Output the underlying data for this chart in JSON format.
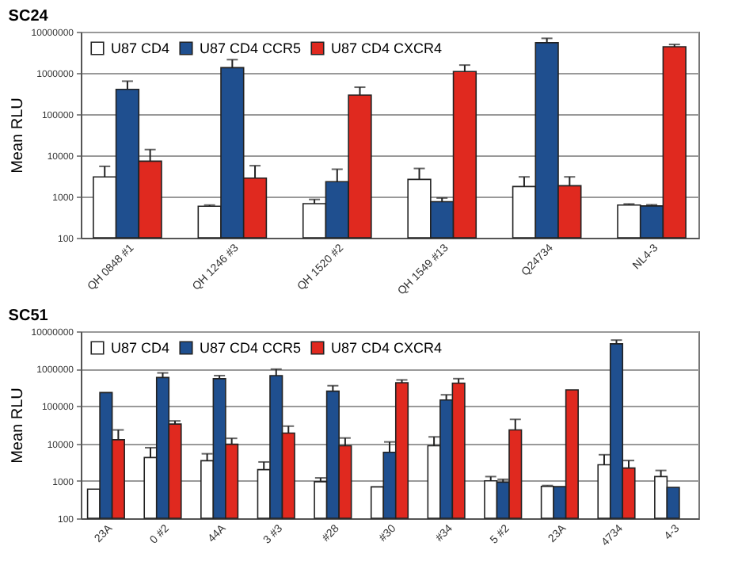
{
  "chart_data": [
    {
      "type": "bar",
      "title": "SC24",
      "ylabel": "Mean RLU",
      "categories": [
        "QH 0848 #1",
        "QH 1246 #3",
        "QH 1520 #2",
        "QH 1549 #13",
        "Q24734",
        "NL4-3"
      ],
      "series": [
        {
          "name": "U87 CD4",
          "color": "#ffffff",
          "values": [
            3000,
            580,
            670,
            2600,
            1750,
            620
          ],
          "errors": [
            [
              3000,
              5400
            ],
            [
              580,
              620
            ],
            [
              670,
              850
            ],
            [
              2600,
              4800
            ],
            [
              1750,
              3000
            ],
            [
              620,
              660
            ]
          ]
        },
        {
          "name": "U87 CD4 CCR5",
          "color": "#1f4f8f",
          "values": [
            400000,
            1340000,
            2300,
            750,
            5400000,
            590
          ],
          "errors": [
            [
              400000,
              630000
            ],
            [
              1340000,
              2100000
            ],
            [
              2300,
              4600
            ],
            [
              750,
              920
            ],
            [
              5400000,
              6900000
            ],
            [
              590,
              630
            ]
          ]
        },
        {
          "name": "U87 CD4 CXCR4",
          "color": "#e0291f",
          "values": [
            7200,
            2800,
            290000,
            1080000,
            1830,
            4300000
          ],
          "errors": [
            [
              7200,
              13800
            ],
            [
              2800,
              5600
            ],
            [
              290000,
              450000
            ],
            [
              1080000,
              1550000
            ],
            [
              1830,
              3000
            ],
            [
              4300000,
              4900000
            ]
          ]
        }
      ],
      "log": true,
      "ylim": [
        100,
        10000000
      ],
      "yticks": [
        100,
        1000,
        10000,
        100000,
        1000000,
        10000000
      ],
      "grid": "y",
      "legend": "top left"
    },
    {
      "type": "bar",
      "title": "SC51",
      "ylabel": "Mean RLU",
      "categories": [
        "23A",
        "0 #2",
        "44A",
        "3 #3",
        "#28",
        "#30",
        "#34",
        "5 #2",
        "23A",
        "4734",
        "4-3"
      ],
      "series": [
        {
          "name": "U87 CD4",
          "color": "#ffffff",
          "values": [
            600,
            4200,
            3450,
            2000,
            950,
            690,
            8700,
            1000,
            710,
            2700,
            1300
          ],
          "errors": [
            null,
            [
              4200,
              7700
            ],
            [
              3450,
              5300
            ],
            [
              2000,
              3200
            ],
            [
              950,
              1200
            ],
            null,
            [
              8700,
              15000
            ],
            [
              1000,
              1300
            ],
            [
              710,
              750
            ],
            [
              2700,
              5000
            ],
            [
              1300,
              1900
            ]
          ]
        },
        {
          "name": "U87 CD4 CCR5",
          "color": "#1f4f8f",
          "values": [
            230000,
            580000,
            540000,
            650000,
            250000,
            5800,
            145000,
            920,
            700,
            4600000,
            670
          ],
          "errors": [
            null,
            [
              580000,
              770000
            ],
            [
              540000,
              650000
            ],
            [
              650000,
              970000
            ],
            [
              250000,
              350000
            ],
            [
              5800,
              11000
            ],
            [
              145000,
              200000
            ],
            [
              920,
              1100
            ],
            null,
            [
              4600000,
              5800000
            ],
            null
          ]
        },
        {
          "name": "U87 CD4 CXCR4",
          "color": "#e0291f",
          "values": [
            12600,
            33000,
            9500,
            19000,
            8700,
            420000,
            410000,
            23000,
            270000,
            2200,
            null
          ],
          "errors": [
            [
              12600,
              23000
            ],
            [
              33000,
              40000
            ],
            [
              9500,
              13700
            ],
            [
              19000,
              29000
            ],
            [
              8700,
              14000
            ],
            [
              420000,
              500000
            ],
            [
              410000,
              540000
            ],
            [
              23000,
              44000
            ],
            null,
            [
              2200,
              3500
            ],
            null
          ]
        }
      ],
      "log": true,
      "ylim": [
        100,
        10000000
      ],
      "yticks": [
        100,
        1000,
        10000,
        100000,
        1000000,
        10000000
      ],
      "grid": "y",
      "legend": "top left"
    }
  ]
}
